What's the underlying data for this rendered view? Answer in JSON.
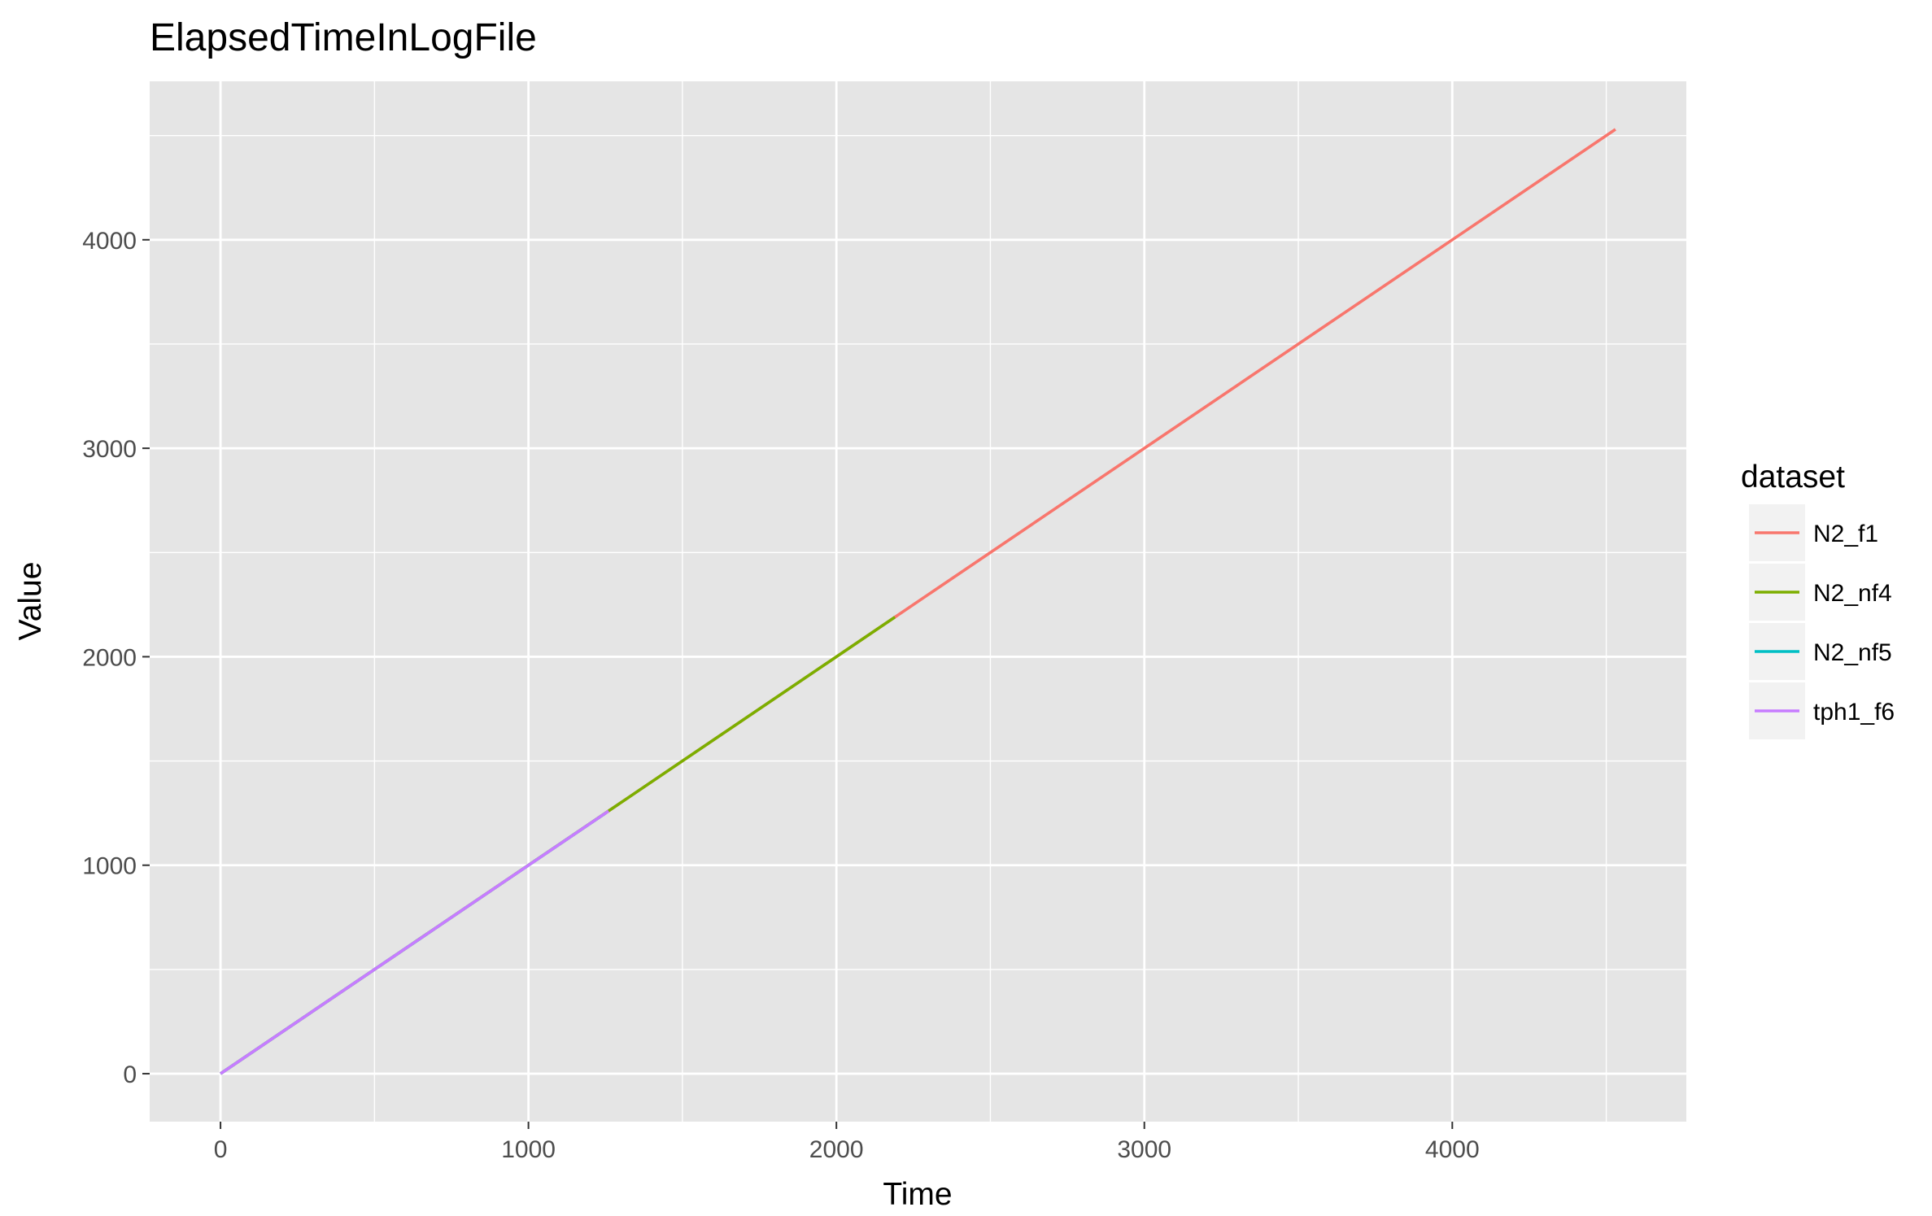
{
  "chart_data": {
    "type": "line",
    "title": "ElapsedTimeInLogFile",
    "xlabel": "Time",
    "ylabel": "Value",
    "xlim": [
      -230,
      4760
    ],
    "ylim": [
      -230,
      4760
    ],
    "x_ticks": [
      0,
      1000,
      2000,
      3000,
      4000
    ],
    "y_ticks": [
      0,
      1000,
      2000,
      3000,
      4000
    ],
    "x_minor": [
      500,
      1500,
      2500,
      3500,
      4500
    ],
    "y_minor": [
      500,
      1500,
      2500,
      3500,
      4500
    ],
    "grid": true,
    "legend": {
      "title": "dataset",
      "position": "right"
    },
    "series": [
      {
        "name": "N2_f1",
        "color": "#F8766D",
        "x": [
          0,
          4530
        ],
        "y": [
          0,
          4530
        ]
      },
      {
        "name": "N2_nf4",
        "color": "#7CAE00",
        "x": [
          0,
          2190
        ],
        "y": [
          0,
          2190
        ]
      },
      {
        "name": "N2_nf5",
        "color": "#00BFC4",
        "x": [
          0,
          1250
        ],
        "y": [
          0,
          1250
        ]
      },
      {
        "name": "tph1_f6",
        "color": "#C77CFF",
        "x": [
          0,
          1260
        ],
        "y": [
          0,
          1260
        ]
      }
    ],
    "colors": {
      "panel_bg": "#E5E5E5",
      "grid": "#FFFFFF",
      "legend_key_bg": "#F2F2F2"
    }
  }
}
